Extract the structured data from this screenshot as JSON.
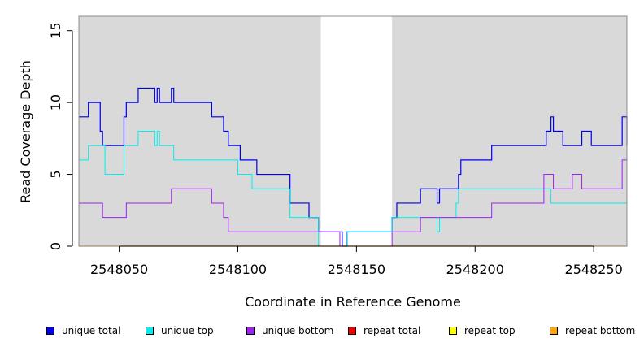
{
  "chart_data": {
    "type": "line",
    "xlabel": "Coordinate in Reference Genome",
    "ylabel": "Read Coverage Depth",
    "xlim": [
      2548033,
      2548264
    ],
    "ylim": [
      0,
      16
    ],
    "xticks": [
      2548050,
      2548100,
      2548150,
      2548200,
      2548250
    ],
    "yticks": [
      0,
      5,
      10,
      15
    ],
    "unshaded_region": [
      2548135,
      2548165
    ],
    "region_colors": {
      "shaded": "#d9d9d9",
      "unshaded": "#ffffff"
    },
    "legend_position": "bottom",
    "series": [
      {
        "name": "unique total",
        "color": "#0000ee",
        "width": 1.2,
        "x": [
          2548033,
          2548037,
          2548037,
          2548042,
          2548042,
          2548043,
          2548043,
          2548044,
          2548044,
          2548052,
          2548052,
          2548053,
          2548053,
          2548058,
          2548058,
          2548065,
          2548065,
          2548066,
          2548066,
          2548067,
          2548067,
          2548072,
          2548072,
          2548073,
          2548073,
          2548089,
          2548089,
          2548094,
          2548094,
          2548096,
          2548096,
          2548101,
          2548101,
          2548108,
          2548108,
          2548122,
          2548122,
          2548130,
          2548130,
          2548134,
          2548134,
          2548144,
          2548144,
          2548146,
          2548146,
          2548165,
          2548165,
          2548167,
          2548167,
          2548177,
          2548177,
          2548184,
          2548184,
          2548185,
          2548185,
          2548193,
          2548193,
          2548194,
          2548194,
          2548207,
          2548207,
          2548230,
          2548230,
          2548232,
          2548232,
          2548233,
          2548233,
          2548237,
          2548237,
          2548245,
          2548245,
          2548249,
          2548249,
          2548262,
          2548262,
          2548264,
          2548264
        ],
        "y": [
          9,
          9,
          10,
          10,
          8,
          8,
          7,
          7,
          7,
          7,
          9,
          9,
          10,
          10,
          11,
          11,
          10,
          10,
          11,
          11,
          10,
          10,
          11,
          11,
          10,
          10,
          9,
          9,
          8,
          8,
          7,
          7,
          6,
          6,
          5,
          5,
          3,
          3,
          2,
          2,
          1,
          1,
          0,
          0,
          1,
          1,
          2,
          2,
          3,
          3,
          4,
          4,
          3,
          3,
          4,
          4,
          5,
          5,
          6,
          6,
          7,
          7,
          8,
          8,
          9,
          9,
          8,
          8,
          7,
          7,
          8,
          8,
          7,
          7,
          9,
          9,
          7
        ]
      },
      {
        "name": "unique top",
        "color": "#00eeee",
        "width": 1.0,
        "x": [
          2548033,
          2548037,
          2548037,
          2548044,
          2548044,
          2548052,
          2548052,
          2548058,
          2548058,
          2548065,
          2548065,
          2548066,
          2548066,
          2548067,
          2548067,
          2548073,
          2548073,
          2548100,
          2548100,
          2548106,
          2548106,
          2548122,
          2548122,
          2548134,
          2548134,
          2548146,
          2548146,
          2548165,
          2548165,
          2548177,
          2548177,
          2548184,
          2548184,
          2548185,
          2548185,
          2548192,
          2548192,
          2548193,
          2548193,
          2548228,
          2548228,
          2548232,
          2548232,
          2548264,
          2548264
        ],
        "y": [
          6,
          6,
          7,
          7,
          5,
          5,
          7,
          7,
          8,
          8,
          7,
          7,
          8,
          8,
          7,
          7,
          6,
          6,
          5,
          5,
          4,
          4,
          2,
          2,
          0,
          0,
          1,
          1,
          2,
          2,
          2,
          2,
          1,
          1,
          2,
          2,
          3,
          3,
          4,
          4,
          4,
          4,
          3,
          3,
          1
        ]
      },
      {
        "name": "unique bottom",
        "color": "#a020f0",
        "width": 1.0,
        "x": [
          2548033,
          2548043,
          2548043,
          2548053,
          2548053,
          2548072,
          2548072,
          2548089,
          2548089,
          2548094,
          2548094,
          2548096,
          2548096,
          2548134,
          2548134,
          2548143,
          2548143,
          2548165,
          2548165,
          2548177,
          2548177,
          2548207,
          2548207,
          2548229,
          2548229,
          2548233,
          2548233,
          2548241,
          2548241,
          2548245,
          2548245,
          2548262,
          2548262,
          2548264
        ],
        "y": [
          3,
          3,
          2,
          2,
          3,
          3,
          4,
          4,
          3,
          3,
          2,
          2,
          1,
          1,
          1,
          1,
          0,
          0,
          1,
          1,
          2,
          2,
          3,
          3,
          5,
          5,
          4,
          4,
          5,
          5,
          4,
          4,
          6,
          6
        ]
      },
      {
        "name": "repeat total",
        "color": "#ee0000",
        "width": 1.0,
        "x": [
          2548033,
          2548264
        ],
        "y": [
          0,
          0
        ]
      },
      {
        "name": "repeat top",
        "color": "#ffff00",
        "width": 1.0,
        "x": [
          2548033,
          2548264
        ],
        "y": [
          0,
          0
        ]
      },
      {
        "name": "repeat bottom",
        "color": "#ffa500",
        "width": 1.2,
        "x": [
          2548033,
          2548264
        ],
        "y": [
          0,
          0
        ]
      }
    ]
  }
}
